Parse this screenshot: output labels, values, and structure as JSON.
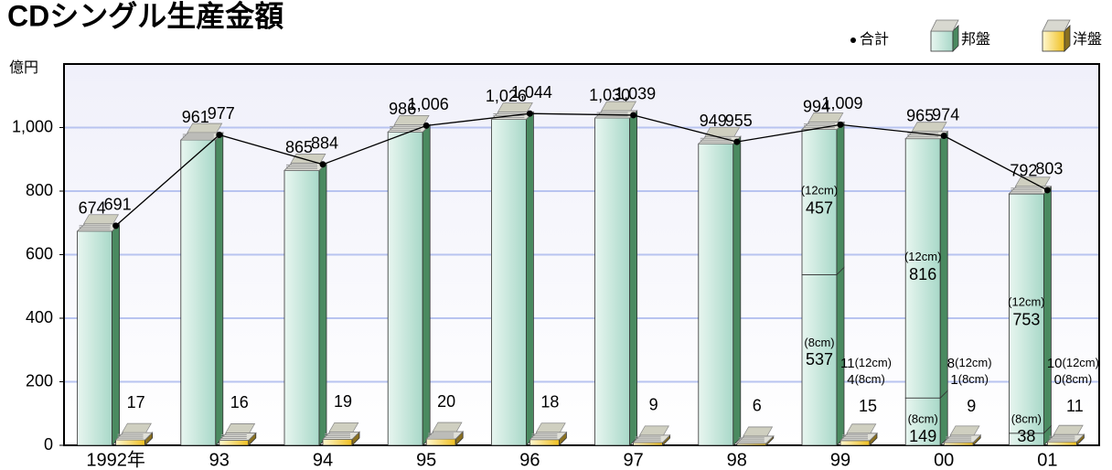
{
  "chart_data": {
    "type": "bar",
    "title": "CDシングル生産金額",
    "y_unit": "億円",
    "categories": [
      "1992年",
      "93",
      "94",
      "95",
      "96",
      "97",
      "98",
      "99",
      "00",
      "01"
    ],
    "ylim": [
      0,
      1200
    ],
    "yticks": [
      0,
      200,
      400,
      600,
      800,
      {
        "value": 1000,
        "label": "1,000"
      }
    ],
    "grid": true,
    "series": [
      {
        "name": "邦盤",
        "color": "#a8d8c8",
        "values": [
          674,
          961,
          865,
          986,
          1026,
          1030,
          949,
          994,
          965,
          792
        ],
        "value_labels": [
          "674",
          "961",
          "865",
          "986",
          "1,026",
          "1,030",
          "949",
          "994",
          "965",
          "792"
        ]
      },
      {
        "name": "洋盤",
        "color": "#f0c020",
        "values": [
          17,
          16,
          19,
          20,
          18,
          9,
          6,
          15,
          9,
          11
        ]
      },
      {
        "name": "合計",
        "type": "line",
        "color": "#000000",
        "values": [
          691,
          977,
          884,
          1006,
          1044,
          1039,
          955,
          1009,
          974,
          803
        ],
        "value_labels": [
          "691",
          "977",
          "884",
          "1,006",
          "1,044",
          "1,039",
          "955",
          "1,009",
          "974",
          "803"
        ]
      }
    ],
    "size_labels": [
      "(12cm)",
      "(8cm)"
    ],
    "domestic_12cm": [
      null,
      null,
      null,
      null,
      null,
      null,
      null,
      457,
      816,
      753
    ],
    "domestic_8cm": [
      null,
      null,
      null,
      null,
      null,
      null,
      null,
      537,
      149,
      38
    ],
    "foreign_12cm": [
      null,
      null,
      null,
      null,
      null,
      null,
      null,
      11,
      8,
      10
    ],
    "foreign_8cm": [
      null,
      null,
      null,
      null,
      null,
      null,
      null,
      4,
      1,
      0
    ]
  }
}
